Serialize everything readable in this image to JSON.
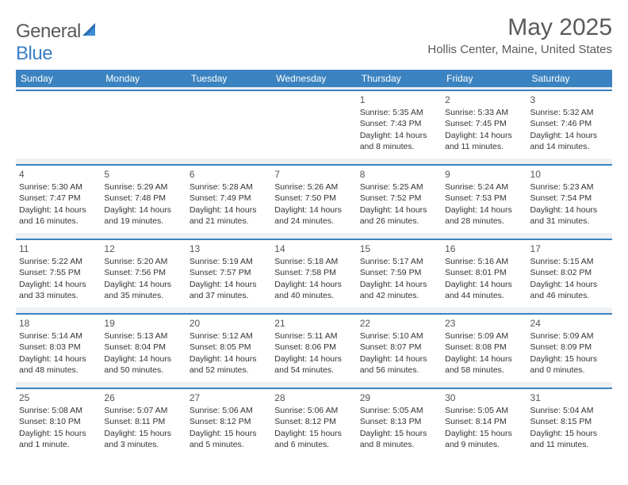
{
  "brand": {
    "text1": "General",
    "text2": "Blue"
  },
  "header": {
    "month_title": "May 2025",
    "location": "Hollis Center, Maine, United States"
  },
  "weekdays": [
    "Sunday",
    "Monday",
    "Tuesday",
    "Wednesday",
    "Thursday",
    "Friday",
    "Saturday"
  ],
  "colors": {
    "header_bg": "#3b83c0",
    "spacer_bg": "#eef1f3",
    "week_border": "#3b83c0"
  },
  "weeks": [
    [
      null,
      null,
      null,
      null,
      {
        "n": "1",
        "sr": "5:35 AM",
        "ss": "7:43 PM",
        "dl": "14 hours and 8 minutes."
      },
      {
        "n": "2",
        "sr": "5:33 AM",
        "ss": "7:45 PM",
        "dl": "14 hours and 11 minutes."
      },
      {
        "n": "3",
        "sr": "5:32 AM",
        "ss": "7:46 PM",
        "dl": "14 hours and 14 minutes."
      }
    ],
    [
      {
        "n": "4",
        "sr": "5:30 AM",
        "ss": "7:47 PM",
        "dl": "14 hours and 16 minutes."
      },
      {
        "n": "5",
        "sr": "5:29 AM",
        "ss": "7:48 PM",
        "dl": "14 hours and 19 minutes."
      },
      {
        "n": "6",
        "sr": "5:28 AM",
        "ss": "7:49 PM",
        "dl": "14 hours and 21 minutes."
      },
      {
        "n": "7",
        "sr": "5:26 AM",
        "ss": "7:50 PM",
        "dl": "14 hours and 24 minutes."
      },
      {
        "n": "8",
        "sr": "5:25 AM",
        "ss": "7:52 PM",
        "dl": "14 hours and 26 minutes."
      },
      {
        "n": "9",
        "sr": "5:24 AM",
        "ss": "7:53 PM",
        "dl": "14 hours and 28 minutes."
      },
      {
        "n": "10",
        "sr": "5:23 AM",
        "ss": "7:54 PM",
        "dl": "14 hours and 31 minutes."
      }
    ],
    [
      {
        "n": "11",
        "sr": "5:22 AM",
        "ss": "7:55 PM",
        "dl": "14 hours and 33 minutes."
      },
      {
        "n": "12",
        "sr": "5:20 AM",
        "ss": "7:56 PM",
        "dl": "14 hours and 35 minutes."
      },
      {
        "n": "13",
        "sr": "5:19 AM",
        "ss": "7:57 PM",
        "dl": "14 hours and 37 minutes."
      },
      {
        "n": "14",
        "sr": "5:18 AM",
        "ss": "7:58 PM",
        "dl": "14 hours and 40 minutes."
      },
      {
        "n": "15",
        "sr": "5:17 AM",
        "ss": "7:59 PM",
        "dl": "14 hours and 42 minutes."
      },
      {
        "n": "16",
        "sr": "5:16 AM",
        "ss": "8:01 PM",
        "dl": "14 hours and 44 minutes."
      },
      {
        "n": "17",
        "sr": "5:15 AM",
        "ss": "8:02 PM",
        "dl": "14 hours and 46 minutes."
      }
    ],
    [
      {
        "n": "18",
        "sr": "5:14 AM",
        "ss": "8:03 PM",
        "dl": "14 hours and 48 minutes."
      },
      {
        "n": "19",
        "sr": "5:13 AM",
        "ss": "8:04 PM",
        "dl": "14 hours and 50 minutes."
      },
      {
        "n": "20",
        "sr": "5:12 AM",
        "ss": "8:05 PM",
        "dl": "14 hours and 52 minutes."
      },
      {
        "n": "21",
        "sr": "5:11 AM",
        "ss": "8:06 PM",
        "dl": "14 hours and 54 minutes."
      },
      {
        "n": "22",
        "sr": "5:10 AM",
        "ss": "8:07 PM",
        "dl": "14 hours and 56 minutes."
      },
      {
        "n": "23",
        "sr": "5:09 AM",
        "ss": "8:08 PM",
        "dl": "14 hours and 58 minutes."
      },
      {
        "n": "24",
        "sr": "5:09 AM",
        "ss": "8:09 PM",
        "dl": "15 hours and 0 minutes."
      }
    ],
    [
      {
        "n": "25",
        "sr": "5:08 AM",
        "ss": "8:10 PM",
        "dl": "15 hours and 1 minute."
      },
      {
        "n": "26",
        "sr": "5:07 AM",
        "ss": "8:11 PM",
        "dl": "15 hours and 3 minutes."
      },
      {
        "n": "27",
        "sr": "5:06 AM",
        "ss": "8:12 PM",
        "dl": "15 hours and 5 minutes."
      },
      {
        "n": "28",
        "sr": "5:06 AM",
        "ss": "8:12 PM",
        "dl": "15 hours and 6 minutes."
      },
      {
        "n": "29",
        "sr": "5:05 AM",
        "ss": "8:13 PM",
        "dl": "15 hours and 8 minutes."
      },
      {
        "n": "30",
        "sr": "5:05 AM",
        "ss": "8:14 PM",
        "dl": "15 hours and 9 minutes."
      },
      {
        "n": "31",
        "sr": "5:04 AM",
        "ss": "8:15 PM",
        "dl": "15 hours and 11 minutes."
      }
    ]
  ],
  "labels": {
    "sunrise": "Sunrise: ",
    "sunset": "Sunset: ",
    "daylight": "Daylight: "
  }
}
